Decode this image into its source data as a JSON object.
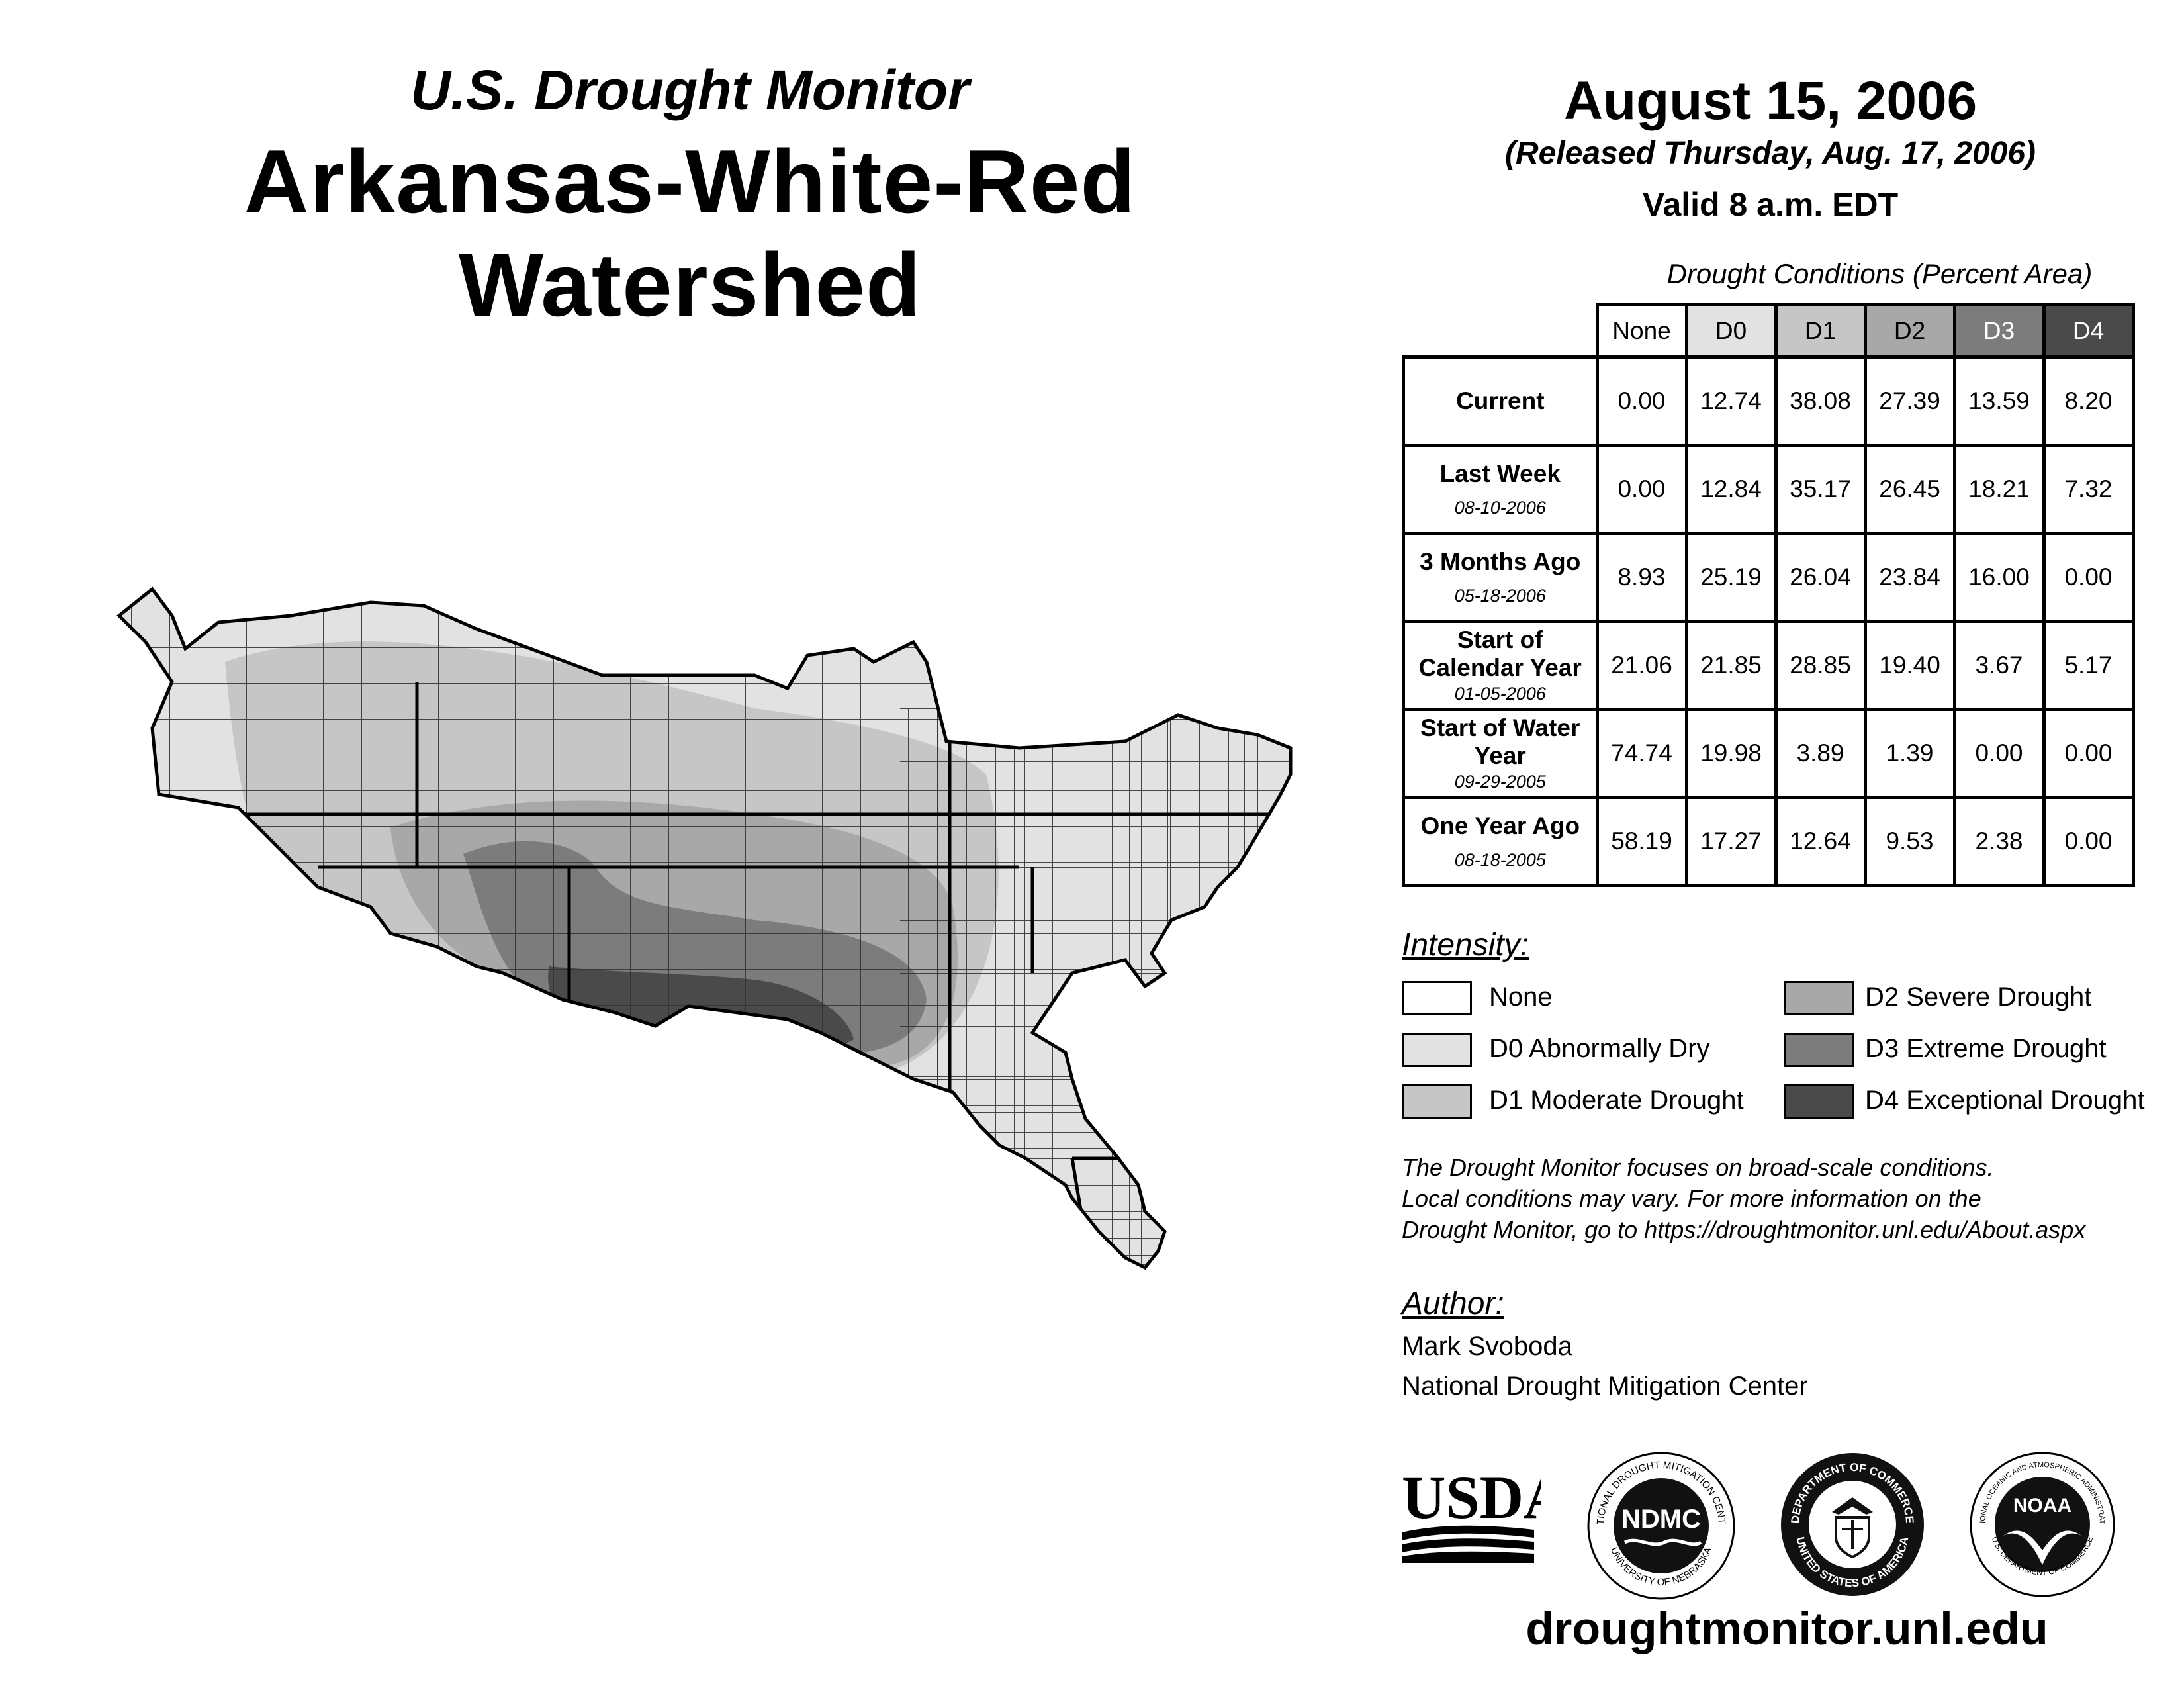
{
  "header": {
    "subtitle": "U.S. Drought Monitor",
    "title": "Arkansas-White-Red Watershed",
    "date": "August 15, 2006",
    "released": "(Released Thursday, Aug. 17, 2006)",
    "valid": "Valid 8 a.m. EDT"
  },
  "table": {
    "caption": "Drought Conditions (Percent Area)",
    "columns": [
      "None",
      "D0",
      "D1",
      "D2",
      "D3",
      "D4"
    ],
    "rows": [
      {
        "label": "Current",
        "date": "",
        "values": [
          "0.00",
          "12.74",
          "38.08",
          "27.39",
          "13.59",
          "8.20"
        ]
      },
      {
        "label": "Last Week",
        "date": "08-10-2006",
        "values": [
          "0.00",
          "12.84",
          "35.17",
          "26.45",
          "18.21",
          "7.32"
        ]
      },
      {
        "label": "3 Months Ago",
        "date": "05-18-2006",
        "values": [
          "8.93",
          "25.19",
          "26.04",
          "23.84",
          "16.00",
          "0.00"
        ]
      },
      {
        "label": "Start of Calendar Year",
        "date": "01-05-2006",
        "values": [
          "21.06",
          "21.85",
          "28.85",
          "19.40",
          "3.67",
          "5.17"
        ]
      },
      {
        "label": "Start of Water Year",
        "date": "09-29-2005",
        "values": [
          "74.74",
          "19.98",
          "3.89",
          "1.39",
          "0.00",
          "0.00"
        ]
      },
      {
        "label": "One Year Ago",
        "date": "08-18-2005",
        "values": [
          "58.19",
          "17.27",
          "12.64",
          "9.53",
          "2.38",
          "0.00"
        ]
      }
    ]
  },
  "legend": {
    "title": "Intensity:",
    "items": [
      {
        "label": "None",
        "color": "#ffffff"
      },
      {
        "label": "D0 Abnormally Dry",
        "color": "#e2e2e2"
      },
      {
        "label": "D1 Moderate Drought",
        "color": "#c6c6c6"
      },
      {
        "label": "D2 Severe Drought",
        "color": "#a8a8a8"
      },
      {
        "label": "D3 Extreme Drought",
        "color": "#7c7c7c"
      },
      {
        "label": "D4 Exceptional Drought",
        "color": "#4a4a4a"
      }
    ]
  },
  "note": {
    "line1": "The Drought Monitor focuses on broad-scale conditions.",
    "line2": "Local conditions may vary. For more information on the",
    "line3": "Drought Monitor, go to https://droughtmonitor.unl.edu/About.aspx"
  },
  "author": {
    "title": "Author:",
    "name": "Mark Svoboda",
    "org": "National Drought Mitigation Center"
  },
  "logos": {
    "usda": "USDA",
    "ndmc": "NDMC",
    "ndmc_ring_top": "NATIONAL DROUGHT MITIGATION CENTER",
    "ndmc_ring_bottom": "UNIVERSITY OF NEBRASKA",
    "doc_ring_top": "DEPARTMENT OF COMMERCE",
    "doc_ring_bottom": "UNITED STATES OF AMERICA",
    "noaa": "NOAA",
    "noaa_ring_top": "NATIONAL OCEANIC AND ATMOSPHERIC ADMINISTRATION",
    "noaa_ring_bottom": "U.S. DEPARTMENT OF COMMERCE"
  },
  "footer": {
    "url": "droughtmonitor.unl.edu"
  },
  "colors": {
    "none": "#ffffff",
    "d0": "#e2e2e2",
    "d1": "#c6c6c6",
    "d2": "#a8a8a8",
    "d3": "#7c7c7c",
    "d4": "#4a4a4a"
  }
}
